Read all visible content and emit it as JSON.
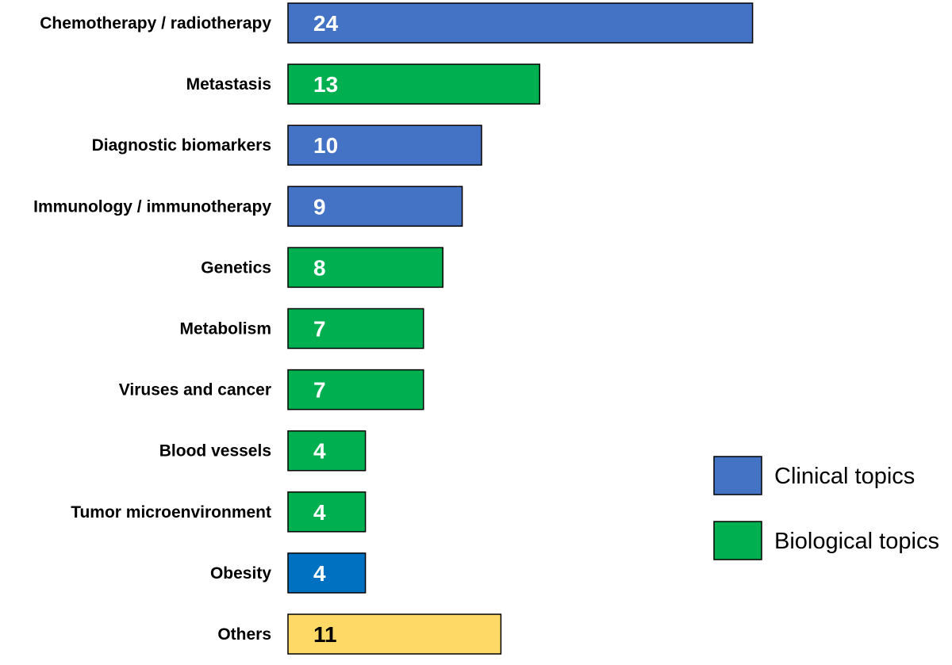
{
  "chart_data": {
    "type": "bar",
    "orientation": "horizontal",
    "categories": [
      "Chemotherapy / radiotherapy",
      "Metastasis",
      "Diagnostic biomarkers",
      "Immunology / immunotherapy",
      "Genetics",
      "Metabolism",
      "Viruses and cancer",
      "Blood vessels",
      "Tumor microenvironment",
      "Obesity",
      "Others"
    ],
    "values": [
      24,
      13,
      10,
      9,
      8,
      7,
      7,
      4,
      4,
      4,
      11
    ],
    "bar_groups": [
      "Clinical topics",
      "Biological topics",
      "Clinical topics",
      "Clinical topics",
      "Biological topics",
      "Biological topics",
      "Biological topics",
      "Biological topics",
      "Biological topics",
      "Clinical topics",
      null
    ],
    "bar_colors": [
      "#4472C4",
      "#00B050",
      "#4472C4",
      "#4472C4",
      "#00B050",
      "#00B050",
      "#00B050",
      "#00B050",
      "#00B050",
      "#0070C0",
      "#FFD966"
    ],
    "value_label_colors": [
      "#FFFFFF",
      "#FFFFFF",
      "#FFFFFF",
      "#FFFFFF",
      "#FFFFFF",
      "#FFFFFF",
      "#FFFFFF",
      "#FFFFFF",
      "#FFFFFF",
      "#FFFFFF",
      "#000000"
    ],
    "legend": {
      "position": "right",
      "entries": [
        {
          "label": "Clinical topics",
          "color": "#4472C4"
        },
        {
          "label": "Biological topics",
          "color": "#00B050"
        }
      ]
    },
    "xlim": [
      0,
      24
    ],
    "grid": false,
    "axis_lines": false,
    "bar_edge_color": "#000000",
    "title": "",
    "xlabel": "",
    "ylabel": ""
  }
}
